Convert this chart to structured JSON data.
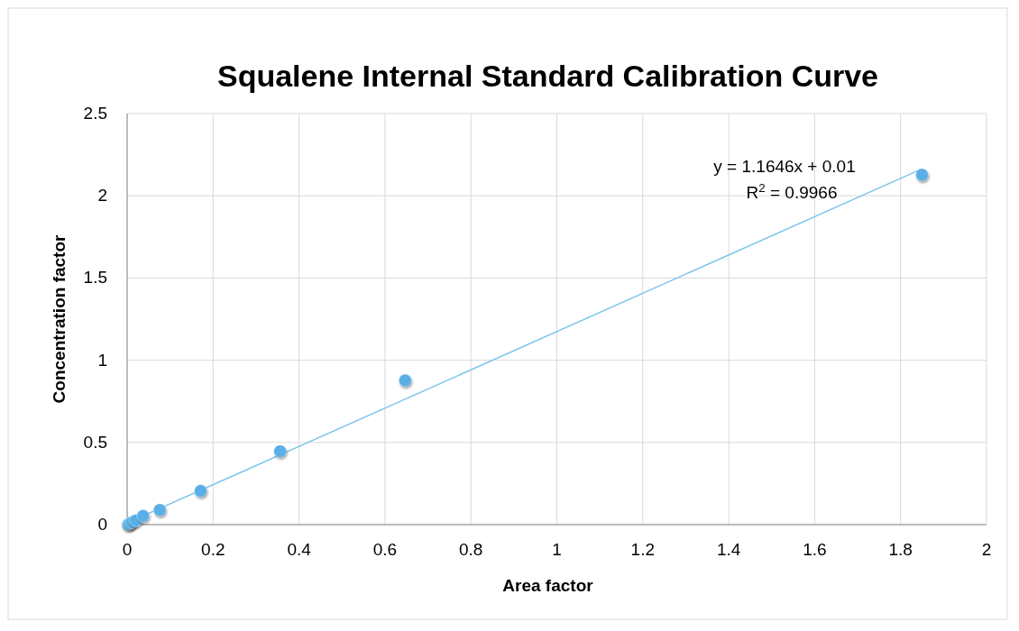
{
  "chart_data": {
    "type": "scatter",
    "title": "Squalene Internal Standard Calibration Curve",
    "xlabel": "Area factor",
    "ylabel": "Concentration factor",
    "xlim": [
      0,
      2
    ],
    "xticks": [
      0,
      0.2,
      0.4,
      0.6,
      0.8,
      1,
      1.2,
      1.4,
      1.6,
      1.8,
      2
    ],
    "ylim": [
      0,
      2.5
    ],
    "yticks": [
      0,
      0.5,
      1,
      1.5,
      2,
      2.5
    ],
    "grid": true,
    "annotations": [
      "y = 1.1646x + 0.01",
      "R$^{2}$ = 0.9966"
    ],
    "series": [
      {
        "marker": "circle",
        "color": "#5aafe6",
        "x": [
          0.002,
          0.005,
          0.01,
          0.02,
          0.037,
          0.076,
          0.171,
          0.356,
          0.647,
          1.85
        ],
        "values": [
          0,
          0.005,
          0.012,
          0.025,
          0.053,
          0.089,
          0.205,
          0.446,
          0.877,
          2.127
        ]
      },
      {
        "type": "line",
        "marker": "none",
        "color": "#7cc4ee",
        "x": [
          0,
          1.85
        ],
        "values": [
          0.01,
          2.164
        ]
      }
    ]
  }
}
